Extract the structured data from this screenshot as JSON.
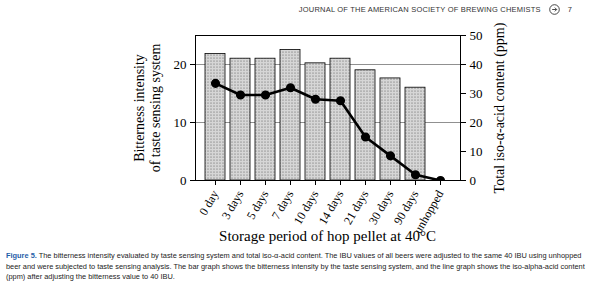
{
  "header": {
    "journal": "JOURNAL OF THE AMERICAN SOCIETY OF BREWING CHEMISTS",
    "page_number": "7"
  },
  "chart_data": {
    "type": "bar",
    "categories": [
      "0 day",
      "3 days",
      "5 days",
      "7 days",
      "10 days",
      "14 days",
      "21 days",
      "30 days",
      "90 days",
      "unhopped"
    ],
    "series": [
      {
        "type": "bar",
        "color": "#d6d6d6",
        "values": [
          21.8,
          21,
          21,
          22.5,
          20.2,
          21,
          19,
          17.6,
          16,
          null
        ]
      },
      {
        "type": "line",
        "axis": "y2",
        "color": "#000000",
        "marker": "circle",
        "line_style": "solid",
        "values": [
          33.5,
          29.5,
          29.5,
          32,
          28,
          27.5,
          15,
          8.5,
          2,
          0
        ]
      }
    ],
    "xlabel": "Storage period of hop pellet at 40°C",
    "ylabel": [
      "Bitterness intensity",
      "of taste sensing system"
    ],
    "y2label": "Total iso-α-acid content (ppm)",
    "ylim": [
      0,
      25
    ],
    "yticks": [
      0,
      10,
      20
    ],
    "y2lim": [
      0,
      50
    ],
    "y2ticks": [
      0,
      10,
      20,
      30,
      40,
      50
    ],
    "grid": true
  },
  "caption": {
    "label": "Figure 5.",
    "text": "The bitterness intensity evaluated by taste sensing system and total iso-α-acid content. The IBU values of all beers were adjusted to the same 40 IBU using unhopped beer and were subjected to taste sensing analysis. The bar graph shows the bitterness intensity by the taste sensing system, and the line graph shows the iso-alpha-acid content (ppm) after adjusting the bitterness value to 40 IBU."
  }
}
